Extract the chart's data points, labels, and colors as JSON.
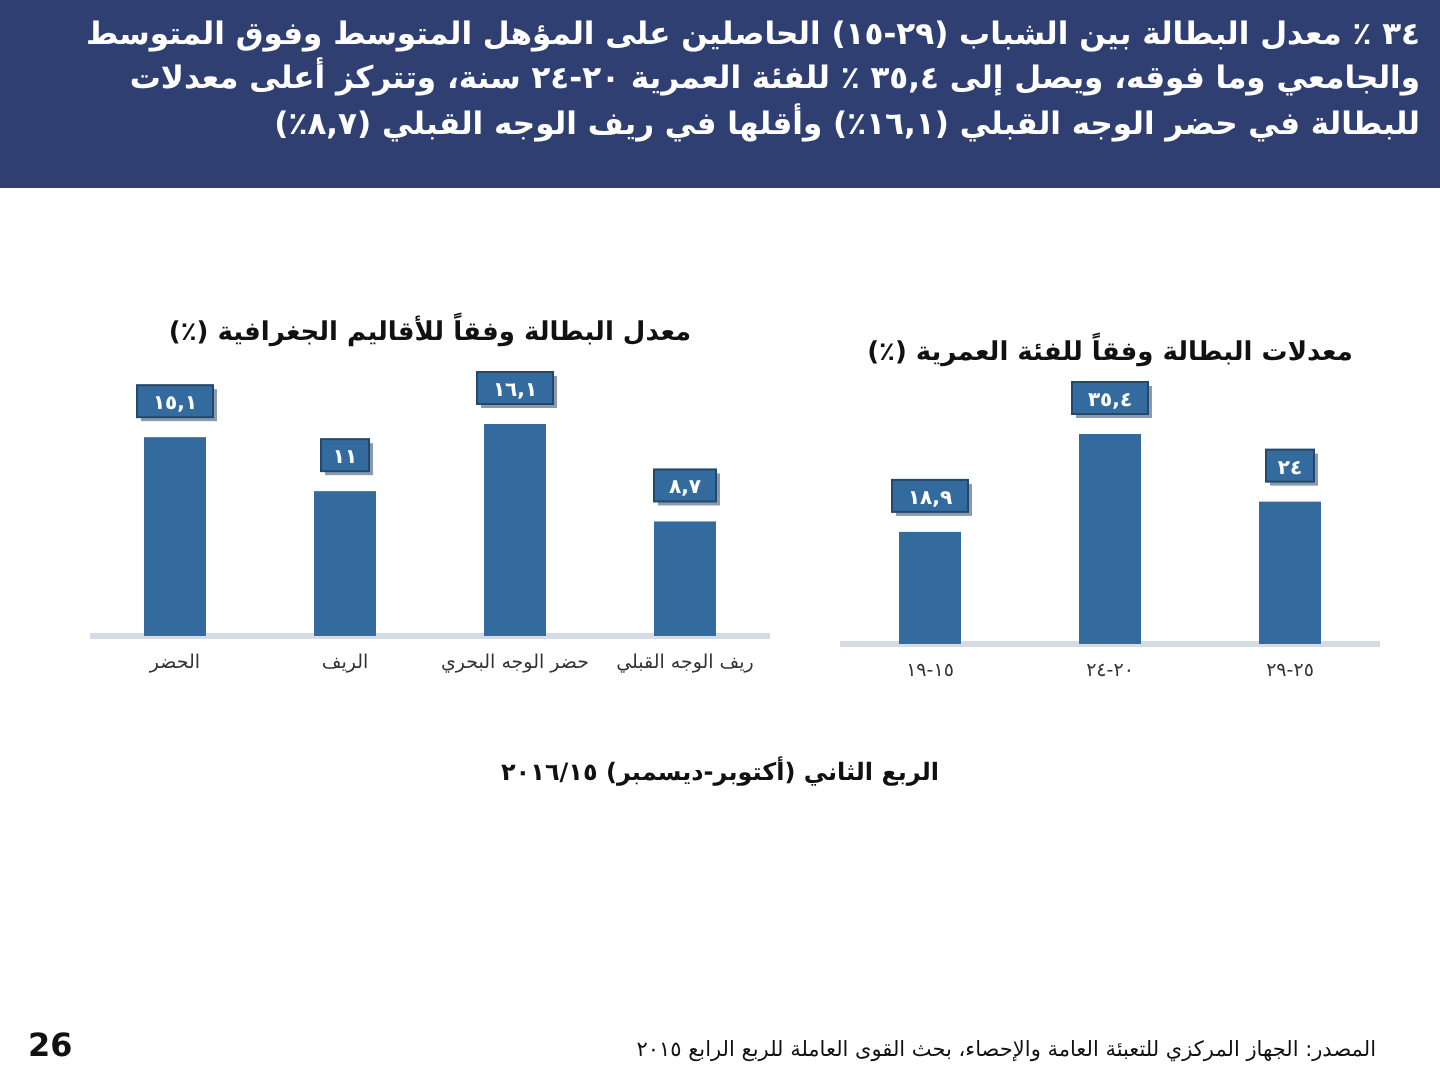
{
  "chart_data": [
    {
      "type": "bar",
      "title": "معدلات البطالة وفقاً للفئة العمرية (٪)",
      "categories": [
        "١٥-١٩",
        "٢٠-٢٤",
        "٢٥-٢٩"
      ],
      "values": [
        18.9,
        35.4,
        24
      ],
      "value_labels": [
        "١٨,٩",
        "٣٥,٤",
        "٢٤"
      ],
      "color": "#336b9e",
      "annotations": [
        "٣٤ ٪ معدل البطالة بين الشباب (٢٩-١٥) الحاصلين على المؤهل المتوسط وفوق المتوسط والجامعي وما فوقه، ويصل إلى ٣٥,٤ ٪ للفئة العمرية ٢٠-٢٤ سنة، وتتركز أعلى معدلات للبطالة في حضر الوجه القبلي (١٦,١٪) وأقلها في ريف الوجه القبلي (٨,٧٪)",
        "الربع الثاني (أكتوبر-ديسمبر) ٢٠١٦/١٥",
        "المصدر: الجهاز المركزي للتعبئة العامة والإحصاء، بحث القوى العاملة للربع الرابع ٢٠١٥",
        "26"
      ]
    },
    {
      "type": "bar",
      "title": "معدل البطالة وفقاً للأقاليم الجغرافية (٪)",
      "categories": [
        "الحضر",
        "الريف",
        "حضر الوجه البحري",
        "ريف الوجه القبلي"
      ],
      "values": [
        15.1,
        11,
        16.1,
        8.7
      ],
      "value_labels": [
        "١٥,١",
        "١١",
        "١٦,١",
        "٨,٧"
      ],
      "color": "#336b9e"
    }
  ]
}
